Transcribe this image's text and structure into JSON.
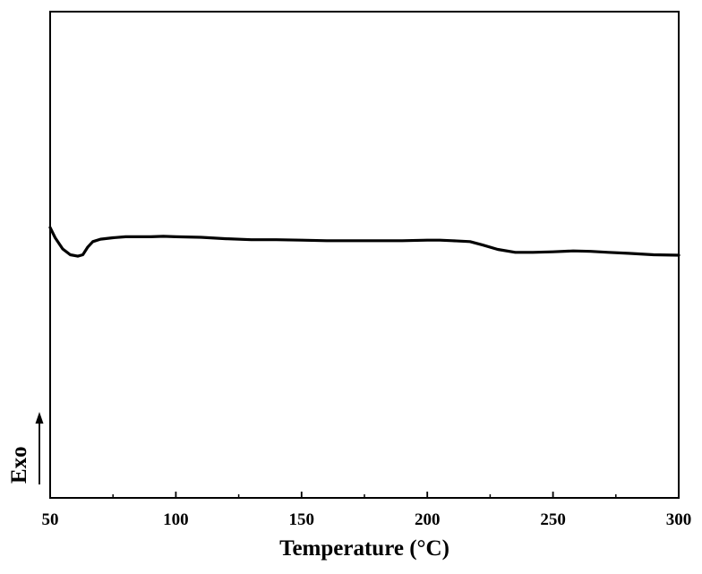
{
  "chart_data": {
    "type": "line",
    "title": "",
    "xlabel": "Temperature (°C)",
    "ylabel": "Exo",
    "xlim": [
      50,
      300
    ],
    "ylim": [
      0,
      1
    ],
    "xticks": [
      50,
      100,
      150,
      200,
      250,
      300
    ],
    "xtick_labels": [
      "50",
      "100",
      "150",
      "200",
      "250",
      "300"
    ],
    "yticks_shown": false,
    "grid": false,
    "legend": "none",
    "line_color": "#000000",
    "series": [
      {
        "x": [
          50,
          52,
          55,
          58,
          61,
          63,
          65,
          67,
          70,
          75,
          80,
          85,
          90,
          95,
          100,
          110,
          120,
          130,
          140,
          150,
          160,
          170,
          180,
          190,
          200,
          205,
          210,
          217,
          222,
          228,
          235,
          242,
          250,
          258,
          265,
          272,
          280,
          290,
          300
        ],
        "y": [
          0.556,
          0.535,
          0.512,
          0.5,
          0.497,
          0.5,
          0.516,
          0.527,
          0.532,
          0.535,
          0.537,
          0.537,
          0.537,
          0.538,
          0.537,
          0.536,
          0.533,
          0.531,
          0.531,
          0.53,
          0.529,
          0.529,
          0.529,
          0.529,
          0.53,
          0.53,
          0.529,
          0.527,
          0.52,
          0.511,
          0.505,
          0.505,
          0.506,
          0.508,
          0.507,
          0.505,
          0.503,
          0.5,
          0.499
        ]
      }
    ]
  }
}
